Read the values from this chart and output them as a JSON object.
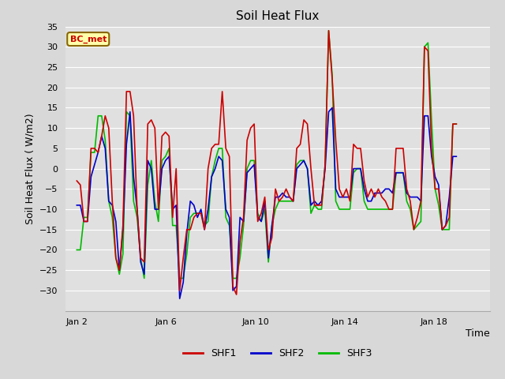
{
  "title": "Soil Heat Flux",
  "xlabel": "Time",
  "ylabel": "Soil Heat Flux ( W/m2)",
  "ylim": [
    -35,
    35
  ],
  "yticks": [
    -30,
    -25,
    -20,
    -15,
    -10,
    -5,
    0,
    5,
    10,
    15,
    20,
    25,
    30,
    35
  ],
  "bg_color": "#d8d8d8",
  "plot_bg_color": "#e0e0e0",
  "grid_color": "#ffffff",
  "shf1_color": "#cc0000",
  "shf2_color": "#0000cc",
  "shf3_color": "#00bb00",
  "legend_label": "BC_met",
  "legend_bg": "#ffffaa",
  "legend_border": "#886600",
  "x_tick_labels": [
    "Jan 2",
    "Jan 6",
    "Jan 10",
    "Jan 14",
    "Jan 18"
  ],
  "x_tick_positions": [
    0,
    4,
    8,
    12,
    16
  ],
  "xlim": [
    -0.5,
    18.5
  ],
  "shf1": [
    -3,
    -4,
    -13,
    -13,
    5,
    5,
    4,
    8,
    13,
    10,
    -8,
    -22,
    -25,
    -14,
    19,
    19,
    13,
    -10,
    -22,
    -23,
    11,
    12,
    10,
    -10,
    8,
    9,
    8,
    -12,
    0,
    -30,
    -22,
    -15,
    -15,
    -12,
    -11,
    -11,
    -15,
    0,
    5,
    6,
    6,
    19,
    5,
    3,
    -29,
    -31,
    -18,
    -12,
    7,
    10,
    11,
    -13,
    -11,
    -7,
    -20,
    -17,
    -5,
    -8,
    -7,
    -5,
    -7,
    -8,
    5,
    6,
    12,
    11,
    0,
    -9,
    -9,
    -9,
    1,
    34,
    22,
    7,
    -5,
    -7,
    -5,
    -8,
    6,
    5,
    5,
    -3,
    -7,
    -5,
    -7,
    -5,
    -7,
    -8,
    -10,
    -10,
    5,
    5,
    5,
    -5,
    -8,
    -15,
    -12,
    -8,
    30,
    29,
    5,
    -5,
    -5,
    -15,
    -14,
    -12,
    11,
    11
  ],
  "shf2": [
    -9,
    -9,
    -13,
    -13,
    -2,
    1,
    4,
    8,
    5,
    -8,
    -9,
    -13,
    -25,
    -15,
    6,
    14,
    -2,
    -10,
    -23,
    -26,
    2,
    0,
    -10,
    -10,
    0,
    2,
    3,
    -10,
    -9,
    -32,
    -28,
    -16,
    -8,
    -9,
    -12,
    -10,
    -15,
    -10,
    -2,
    0,
    3,
    2,
    -10,
    -12,
    -30,
    -29,
    -12,
    -13,
    -1,
    0,
    1,
    -12,
    -13,
    -8,
    -22,
    -14,
    -7,
    -7,
    -6,
    -7,
    -7,
    -8,
    0,
    1,
    2,
    0,
    -9,
    -8,
    -9,
    -8,
    0,
    14,
    15,
    -5,
    -7,
    -7,
    -7,
    -7,
    0,
    0,
    0,
    -5,
    -8,
    -8,
    -6,
    -6,
    -6,
    -5,
    -5,
    -6,
    -1,
    -1,
    -1,
    -6,
    -7,
    -7,
    -7,
    -8,
    13,
    13,
    3,
    -2,
    -4,
    -15,
    -14,
    -7,
    3,
    3
  ],
  "shf3": [
    -20,
    -20,
    -12,
    -12,
    4,
    4,
    13,
    13,
    7,
    -8,
    -12,
    -22,
    -26,
    -21,
    14,
    13,
    -8,
    -12,
    -22,
    -27,
    -4,
    2,
    -8,
    -13,
    2,
    3,
    5,
    -14,
    -14,
    -27,
    -27,
    -21,
    -12,
    -11,
    -11,
    -11,
    -14,
    -13,
    -2,
    2,
    5,
    5,
    -12,
    -14,
    -27,
    -27,
    -22,
    -14,
    0,
    2,
    2,
    -11,
    -13,
    -10,
    -23,
    -14,
    -10,
    -8,
    -8,
    -8,
    -8,
    -8,
    1,
    2,
    2,
    0,
    -11,
    -9,
    -10,
    -10,
    1,
    34,
    23,
    -8,
    -10,
    -10,
    -10,
    -10,
    -1,
    0,
    0,
    -8,
    -10,
    -10,
    -10,
    -10,
    -10,
    -10,
    -10,
    -10,
    -1,
    -1,
    -1,
    -8,
    -10,
    -15,
    -14,
    -13,
    30,
    31,
    12,
    -5,
    -9,
    -15,
    -15,
    -15,
    11,
    11
  ]
}
